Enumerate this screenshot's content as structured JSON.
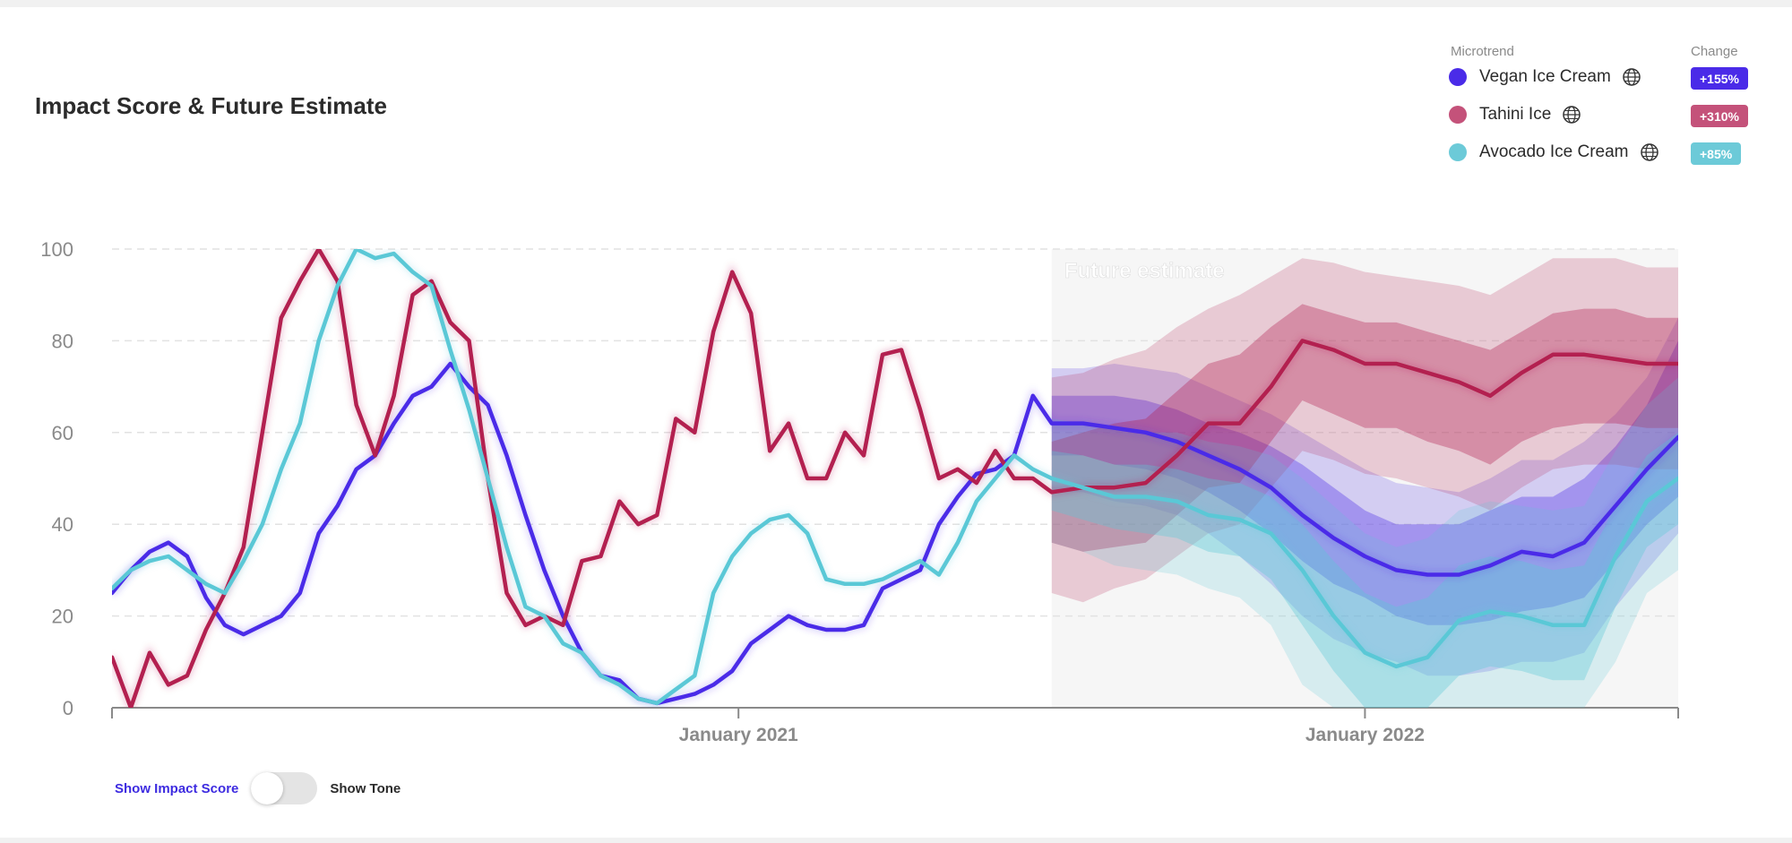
{
  "title": "Impact Score & Future Estimate",
  "legend": {
    "microtrend_header": "Microtrend",
    "change_header": "Change",
    "items": [
      {
        "name": "Vegan Ice Cream",
        "change": "+155%",
        "color": "#4a2be8",
        "icon": "globe-icon"
      },
      {
        "name": "Tahini Ice",
        "change": "+310%",
        "color": "#c4527a",
        "icon": "globe-icon"
      },
      {
        "name": "Avocado Ice Cream",
        "change": "+85%",
        "color": "#6ccad8",
        "icon": "globe-icon"
      }
    ]
  },
  "toggle": {
    "left_label": "Show Impact Score",
    "right_label": "Show Tone",
    "state": "impact-score"
  },
  "chart_data": {
    "type": "line",
    "title": "Impact Score & Future Estimate",
    "xlabel": "",
    "ylabel": "",
    "ylim": [
      0,
      100
    ],
    "yticks": [
      0,
      20,
      40,
      60,
      80,
      100
    ],
    "xlim": [
      2020.0,
      2022.5
    ],
    "xticks": [
      {
        "value": 2021.0,
        "label": "January 2021"
      },
      {
        "value": 2022.0,
        "label": "January 2022"
      }
    ],
    "forecast_start": 2021.5,
    "forecast_label": "Future estimate",
    "grid": true,
    "series": [
      {
        "name": "Vegan Ice Cream",
        "color": "#4a2be8",
        "x": [
          2020.0,
          2020.03,
          2020.06,
          2020.09,
          2020.12,
          2020.15,
          2020.18,
          2020.21,
          2020.24,
          2020.27,
          2020.3,
          2020.33,
          2020.36,
          2020.39,
          2020.42,
          2020.45,
          2020.48,
          2020.51,
          2020.54,
          2020.57,
          2020.6,
          2020.63,
          2020.66,
          2020.69,
          2020.72,
          2020.75,
          2020.78,
          2020.81,
          2020.84,
          2020.87,
          2020.9,
          2020.93,
          2020.96,
          2020.99,
          2021.02,
          2021.05,
          2021.08,
          2021.11,
          2021.14,
          2021.17,
          2021.2,
          2021.23,
          2021.26,
          2021.29,
          2021.32,
          2021.35,
          2021.38,
          2021.41,
          2021.44,
          2021.47,
          2021.5
        ],
        "y": [
          25,
          30,
          34,
          36,
          33,
          24,
          18,
          16,
          18,
          20,
          25,
          38,
          44,
          52,
          55,
          62,
          68,
          70,
          75,
          70,
          66,
          55,
          42,
          30,
          20,
          12,
          7,
          6,
          2,
          1,
          2,
          3,
          5,
          8,
          14,
          17,
          20,
          18,
          17,
          17,
          18,
          26,
          28,
          30,
          40,
          46,
          51,
          52,
          55,
          68,
          62
        ],
        "forecast": {
          "x": [
            2021.5,
            2021.55,
            2021.6,
            2021.65,
            2021.7,
            2021.75,
            2021.8,
            2021.85,
            2021.9,
            2021.95,
            2022.0,
            2022.05,
            2022.1,
            2022.15,
            2022.2,
            2022.25,
            2022.3,
            2022.35,
            2022.4,
            2022.45,
            2022.5
          ],
          "y": [
            62,
            62,
            61,
            60,
            58,
            55,
            52,
            48,
            42,
            37,
            33,
            30,
            29,
            29,
            31,
            34,
            33,
            36,
            44,
            52,
            59
          ],
          "inner_band": [
            [
              55,
              68
            ],
            [
              55,
              68
            ],
            [
              53,
              68
            ],
            [
              52,
              67
            ],
            [
              50,
              65
            ],
            [
              47,
              62
            ],
            [
              43,
              60
            ],
            [
              38,
              57
            ],
            [
              32,
              53
            ],
            [
              27,
              48
            ],
            [
              24,
              43
            ],
            [
              20,
              40
            ],
            [
              18,
              40
            ],
            [
              18,
              40
            ],
            [
              19,
              43
            ],
            [
              21,
              46
            ],
            [
              22,
              46
            ],
            [
              24,
              50
            ],
            [
              32,
              57
            ],
            [
              40,
              66
            ],
            [
              46,
              80
            ]
          ],
          "outer_band": [
            [
              47,
              74
            ],
            [
              47,
              74
            ],
            [
              45,
              75
            ],
            [
              44,
              74
            ],
            [
              42,
              73
            ],
            [
              38,
              70
            ],
            [
              33,
              67
            ],
            [
              27,
              64
            ],
            [
              20,
              60
            ],
            [
              15,
              56
            ],
            [
              12,
              52
            ],
            [
              10,
              49
            ],
            [
              7,
              48
            ],
            [
              7,
              47
            ],
            [
              8,
              50
            ],
            [
              10,
              54
            ],
            [
              10,
              54
            ],
            [
              12,
              58
            ],
            [
              22,
              64
            ],
            [
              30,
              72
            ],
            [
              38,
              85
            ]
          ]
        }
      },
      {
        "name": "Tahini Ice",
        "color": "#b32050",
        "x": [
          2020.0,
          2020.03,
          2020.06,
          2020.09,
          2020.12,
          2020.15,
          2020.18,
          2020.21,
          2020.24,
          2020.27,
          2020.3,
          2020.33,
          2020.36,
          2020.39,
          2020.42,
          2020.45,
          2020.48,
          2020.51,
          2020.54,
          2020.57,
          2020.6,
          2020.63,
          2020.66,
          2020.69,
          2020.72,
          2020.75,
          2020.78,
          2020.81,
          2020.84,
          2020.87,
          2020.9,
          2020.93,
          2020.96,
          2020.99,
          2021.02,
          2021.05,
          2021.08,
          2021.11,
          2021.14,
          2021.17,
          2021.2,
          2021.23,
          2021.26,
          2021.29,
          2021.32,
          2021.35,
          2021.38,
          2021.41,
          2021.44,
          2021.47,
          2021.5
        ],
        "y": [
          11,
          0,
          12,
          5,
          7,
          17,
          25,
          35,
          60,
          85,
          93,
          100,
          93,
          66,
          55,
          68,
          90,
          93,
          84,
          80,
          50,
          25,
          18,
          20,
          18,
          32,
          33,
          45,
          40,
          42,
          63,
          60,
          82,
          95,
          86,
          56,
          62,
          50,
          50,
          60,
          55,
          77,
          78,
          65,
          50,
          52,
          49,
          56,
          50,
          50,
          47
        ],
        "forecast": {
          "x": [
            2021.5,
            2021.55,
            2021.6,
            2021.65,
            2021.7,
            2021.75,
            2021.8,
            2021.85,
            2021.9,
            2021.95,
            2022.0,
            2022.05,
            2022.1,
            2022.15,
            2022.2,
            2022.25,
            2022.3,
            2022.35,
            2022.4,
            2022.45,
            2022.5
          ],
          "y": [
            47,
            48,
            48,
            49,
            55,
            62,
            62,
            70,
            80,
            78,
            75,
            75,
            73,
            71,
            68,
            73,
            77,
            77,
            76,
            75,
            75
          ],
          "inner_band": [
            [
              36,
              58
            ],
            [
              34,
              60
            ],
            [
              35,
              62
            ],
            [
              36,
              63
            ],
            [
              42,
              69
            ],
            [
              48,
              75
            ],
            [
              49,
              77
            ],
            [
              58,
              83
            ],
            [
              67,
              88
            ],
            [
              64,
              86
            ],
            [
              61,
              84
            ],
            [
              61,
              84
            ],
            [
              58,
              82
            ],
            [
              56,
              80
            ],
            [
              53,
              78
            ],
            [
              58,
              82
            ],
            [
              61,
              86
            ],
            [
              62,
              87
            ],
            [
              62,
              87
            ],
            [
              61,
              85
            ],
            [
              61,
              85
            ]
          ],
          "outer_band": [
            [
              25,
              72
            ],
            [
              23,
              73
            ],
            [
              26,
              76
            ],
            [
              28,
              78
            ],
            [
              33,
              83
            ],
            [
              38,
              87
            ],
            [
              40,
              90
            ],
            [
              48,
              94
            ],
            [
              56,
              98
            ],
            [
              54,
              97
            ],
            [
              51,
              95
            ],
            [
              50,
              94
            ],
            [
              48,
              93
            ],
            [
              46,
              92
            ],
            [
              43,
              90
            ],
            [
              48,
              94
            ],
            [
              52,
              98
            ],
            [
              53,
              98
            ],
            [
              53,
              98
            ],
            [
              52,
              96
            ],
            [
              52,
              96
            ]
          ]
        }
      },
      {
        "name": "Avocado Ice Cream",
        "color": "#5ac8d6",
        "x": [
          2020.0,
          2020.03,
          2020.06,
          2020.09,
          2020.12,
          2020.15,
          2020.18,
          2020.21,
          2020.24,
          2020.27,
          2020.3,
          2020.33,
          2020.36,
          2020.39,
          2020.42,
          2020.45,
          2020.48,
          2020.51,
          2020.54,
          2020.57,
          2020.6,
          2020.63,
          2020.66,
          2020.69,
          2020.72,
          2020.75,
          2020.78,
          2020.81,
          2020.84,
          2020.87,
          2020.9,
          2020.93,
          2020.96,
          2020.99,
          2021.02,
          2021.05,
          2021.08,
          2021.11,
          2021.14,
          2021.17,
          2021.2,
          2021.23,
          2021.26,
          2021.29,
          2021.32,
          2021.35,
          2021.38,
          2021.41,
          2021.44,
          2021.47,
          2021.5
        ],
        "y": [
          26,
          30,
          32,
          33,
          30,
          27,
          25,
          32,
          40,
          52,
          62,
          80,
          92,
          100,
          98,
          99,
          95,
          92,
          78,
          65,
          50,
          35,
          22,
          20,
          14,
          12,
          7,
          5,
          2,
          1,
          4,
          7,
          25,
          33,
          38,
          41,
          42,
          38,
          28,
          27,
          27,
          28,
          30,
          32,
          29,
          36,
          45,
          50,
          55,
          52,
          50
        ],
        "forecast": {
          "x": [
            2021.5,
            2021.55,
            2021.6,
            2021.65,
            2021.7,
            2021.75,
            2021.8,
            2021.85,
            2021.9,
            2021.95,
            2022.0,
            2022.05,
            2022.1,
            2022.15,
            2022.2,
            2022.25,
            2022.3,
            2022.35,
            2022.4,
            2022.45,
            2022.5
          ],
          "y": [
            50,
            48,
            46,
            46,
            45,
            42,
            41,
            38,
            30,
            20,
            12,
            9,
            11,
            19,
            21,
            20,
            18,
            18,
            33,
            45,
            50
          ],
          "inner_band": [
            [
              43,
              56
            ],
            [
              41,
              55
            ],
            [
              39,
              53
            ],
            [
              38,
              53
            ],
            [
              37,
              52
            ],
            [
              34,
              50
            ],
            [
              33,
              49
            ],
            [
              28,
              46
            ],
            [
              18,
              40
            ],
            [
              8,
              32
            ],
            [
              0,
              25
            ],
            [
              0,
              22
            ],
            [
              0,
              24
            ],
            [
              7,
              31
            ],
            [
              9,
              33
            ],
            [
              8,
              32
            ],
            [
              6,
              30
            ],
            [
              6,
              31
            ],
            [
              22,
              44
            ],
            [
              35,
              55
            ],
            [
              40,
              60
            ]
          ],
          "outer_band": [
            [
              36,
              63
            ],
            [
              34,
              62
            ],
            [
              31,
              61
            ],
            [
              30,
              60
            ],
            [
              29,
              60
            ],
            [
              26,
              58
            ],
            [
              24,
              57
            ],
            [
              18,
              55
            ],
            [
              5,
              50
            ],
            [
              0,
              44
            ],
            [
              0,
              38
            ],
            [
              0,
              35
            ],
            [
              0,
              37
            ],
            [
              0,
              43
            ],
            [
              0,
              45
            ],
            [
              0,
              44
            ],
            [
              0,
              43
            ],
            [
              0,
              44
            ],
            [
              10,
              56
            ],
            [
              25,
              66
            ],
            [
              30,
              72
            ]
          ]
        }
      }
    ]
  }
}
